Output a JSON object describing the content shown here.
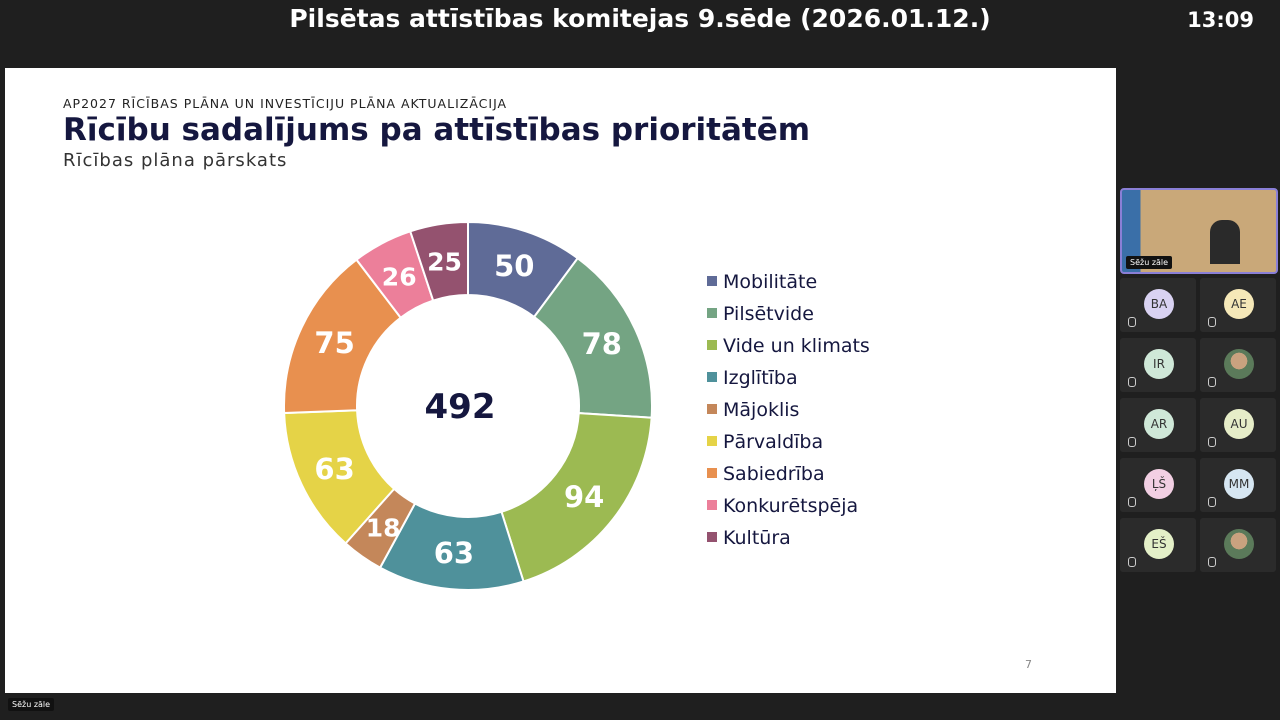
{
  "header": {
    "title": "Pilsētas attīstības komitejas 9.sēde (2026.01.12.)",
    "time": "13:09"
  },
  "slide": {
    "kicker": "AP2027 RĪCĪBAS PLĀNA UN INVESTĪCIJU PLĀNA AKTUALIZĀCIJA",
    "page": "7"
  },
  "chart_data": {
    "type": "donut",
    "title": "Rīcību sadalījums pa attīstības prioritātēm",
    "subtitle": "Rīcības plāna pārskats",
    "total": 492,
    "categories": [
      "Mobilitāte",
      "Pilsētvide",
      "Vide un klimats",
      "Izglītība",
      "Mājoklis",
      "Pārvaldība",
      "Sabiedrība",
      "Konkurētspēja",
      "Kultūra"
    ],
    "values": [
      50,
      78,
      94,
      63,
      18,
      63,
      75,
      26,
      25
    ],
    "colors": [
      "#5f6b97",
      "#74a483",
      "#9cba52",
      "#4f919b",
      "#c4875a",
      "#e5d347",
      "#e8904f",
      "#ec7f9a",
      "#94526f"
    ],
    "legend": "right"
  },
  "video": {
    "main_label": "Sēžu zāle",
    "bottom_label": "Sēžu zāle"
  },
  "participants": [
    "BA",
    "AE",
    "IR",
    "AR",
    "AU",
    "ĻŠ",
    "MM",
    "EŠ"
  ]
}
